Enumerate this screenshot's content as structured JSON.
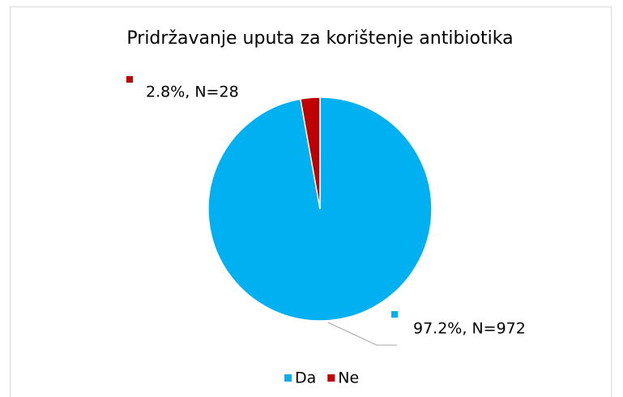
{
  "chart_data": {
    "type": "pie",
    "title": "Pridržavanje uputa za korištenje antibiotika",
    "categories": [
      "Da",
      "Ne"
    ],
    "values": [
      97.2,
      2.8
    ],
    "value_labels": [
      "97.2%, N=972",
      "2.8%, N=28"
    ],
    "colors": [
      "#00b0f0",
      "#c00000"
    ],
    "legend": "bottom"
  }
}
